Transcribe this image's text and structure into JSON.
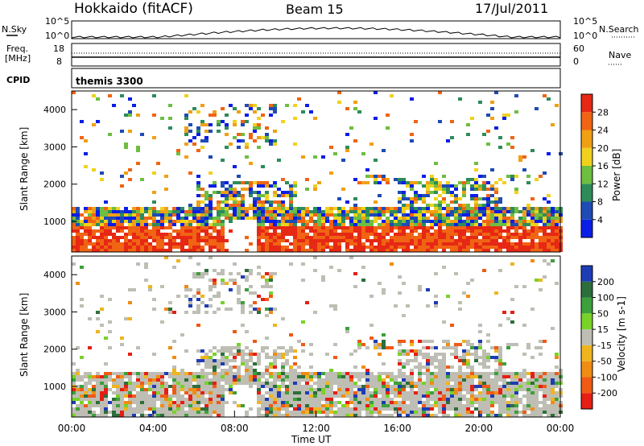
{
  "header": {
    "title": "Hokkaido (fitACF)",
    "beam": "Beam 15",
    "date": "17/Jul/2011"
  },
  "top_panel": {
    "nsky_label": "N.Sky",
    "nsearch_label": "N.Search",
    "left_ticks": [
      "10^5",
      "10^0"
    ],
    "right_ticks": [
      "10^5",
      "10^0"
    ],
    "freq_label": "Freq.",
    "freq_unit": "[MHz]",
    "freq_ticks": [
      "18",
      "8"
    ],
    "nave_label": "Nave",
    "nave_ticks": [
      "60",
      "0"
    ],
    "cpid_label": "CPID",
    "cpid_value": "themis 3300"
  },
  "chart_data": [
    {
      "type": "heatmap",
      "name": "power",
      "ylabel": "Slant Range [km]",
      "xlabel": "",
      "ylim": [
        180,
        4500
      ],
      "xlim": [
        0,
        24
      ],
      "yticks": [
        "1000",
        "2000",
        "3000",
        "4000"
      ],
      "colorbar_label": "Power [dB]",
      "colorbar_ticks": [
        "4",
        "8",
        "12",
        "16",
        "20",
        "24",
        "28"
      ],
      "colors": [
        "#0a1ee6",
        "#1e4bb4",
        "#2d8c5a",
        "#6dbe41",
        "#f0d21e",
        "#f0a014",
        "#f06414",
        "#e62814"
      ]
    },
    {
      "type": "heatmap",
      "name": "velocity",
      "ylabel": "Slant Range [km]",
      "xlabel": "Time UT",
      "ylim": [
        180,
        4500
      ],
      "xlim": [
        0,
        24
      ],
      "yticks": [
        "1000",
        "2000",
        "3000",
        "4000"
      ],
      "xticks": [
        "00:00",
        "04:00",
        "08:00",
        "12:00",
        "16:00",
        "20:00",
        "00:00"
      ],
      "colorbar_label": "Velocity [m s-1]",
      "colorbar_ticks": [
        "200",
        "100",
        "50",
        "15",
        "-15",
        "-50",
        "-100",
        "-200"
      ],
      "colors": [
        "#1e3cb4",
        "#2d6e3c",
        "#3ca03c",
        "#78d228",
        "#bebeb4",
        "#f0b41e",
        "#f08c14",
        "#f05a14",
        "#e61e14"
      ]
    }
  ]
}
